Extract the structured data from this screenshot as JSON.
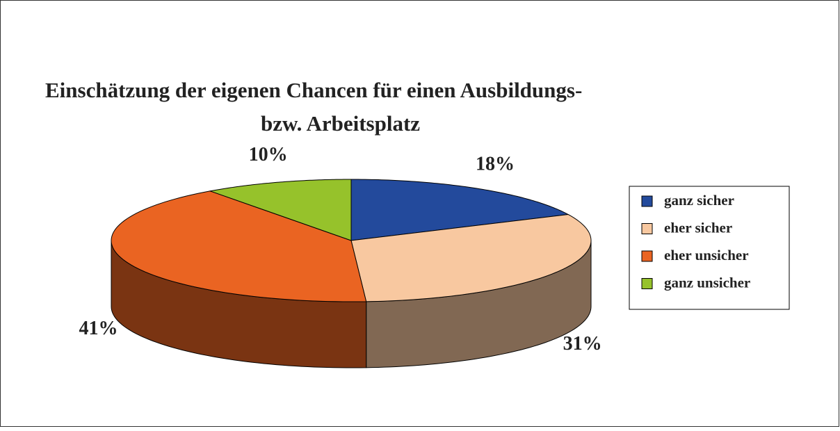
{
  "chart_data": {
    "type": "pie3d",
    "title": [
      "Einschätzung der eigenen Chancen für einen Ausbildungs-",
      "bzw. Arbeitsplatz"
    ],
    "categories": [
      "ganz sicher",
      "eher sicher",
      "eher unsicher",
      "ganz unsicher"
    ],
    "values": [
      18,
      31,
      41,
      10
    ],
    "value_labels": [
      "18%",
      "31%",
      "41%",
      "10%"
    ],
    "colors": [
      "#234a9c",
      "#f8c8a0",
      "#ea6422",
      "#96c22b"
    ],
    "legend": "right"
  }
}
